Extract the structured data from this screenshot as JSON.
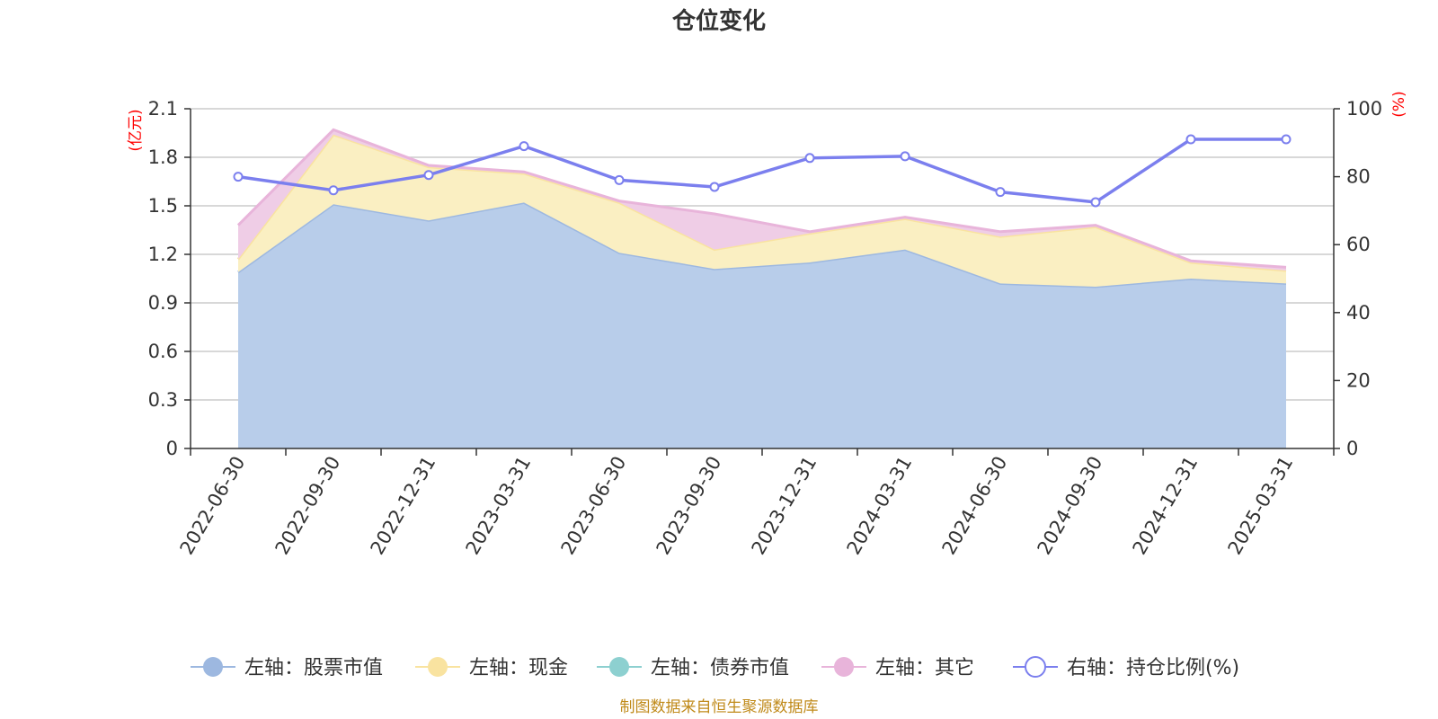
{
  "chart_data": {
    "type": "area",
    "title": "仓位变化",
    "categories": [
      "2022-06-30",
      "2022-09-30",
      "2022-12-31",
      "2023-03-31",
      "2023-06-30",
      "2023-09-30",
      "2023-12-31",
      "2024-03-31",
      "2024-06-30",
      "2024-09-30",
      "2024-12-31",
      "2025-03-31"
    ],
    "left_axis": {
      "unit": "(亿元)",
      "ylim": [
        0,
        2.1
      ],
      "ticks": [
        "0",
        "0.3",
        "0.6",
        "0.9",
        "1.2",
        "1.5",
        "1.8",
        "2.1"
      ]
    },
    "right_axis": {
      "unit": "(%)",
      "ylim": [
        0,
        100
      ],
      "ticks": [
        "0",
        "20",
        "40",
        "60",
        "80",
        "100"
      ]
    },
    "series": [
      {
        "name": "左轴：股票市值",
        "axis": "left",
        "stacked": true,
        "color": "#9db8e0",
        "fill": "#b8cdea",
        "values": [
          1.09,
          1.51,
          1.41,
          1.52,
          1.21,
          1.11,
          1.15,
          1.23,
          1.02,
          1.0,
          1.05,
          1.02
        ]
      },
      {
        "name": "左轴：现金",
        "axis": "left",
        "stacked": true,
        "color": "#f9e3a0",
        "fill": "#faefc2",
        "values": [
          0.08,
          0.43,
          0.33,
          0.18,
          0.31,
          0.12,
          0.18,
          0.19,
          0.29,
          0.37,
          0.1,
          0.08
        ]
      },
      {
        "name": "左轴：债券市值",
        "axis": "left",
        "stacked": true,
        "color": "#8dd0d0",
        "fill": "#b5e2e2",
        "values": [
          0,
          0,
          0,
          0,
          0,
          0,
          0,
          0,
          0,
          0,
          0,
          0
        ]
      },
      {
        "name": "左轴：其它",
        "axis": "left",
        "stacked": true,
        "color": "#e8b4da",
        "fill": "#efcde6",
        "values": [
          0.21,
          0.03,
          0.01,
          0.01,
          0.01,
          0.22,
          0.01,
          0.01,
          0.03,
          0.01,
          0.01,
          0.02
        ]
      },
      {
        "name": "右轴：持仓比例(%)",
        "axis": "right",
        "type": "line",
        "color": "#7b7fee",
        "values": [
          80,
          76,
          80.5,
          89,
          79,
          77,
          85.5,
          86,
          75.5,
          72.5,
          91,
          91
        ]
      }
    ],
    "legend_position": "bottom",
    "grid": true
  },
  "source_text": "制图数据来自恒生聚源数据库"
}
